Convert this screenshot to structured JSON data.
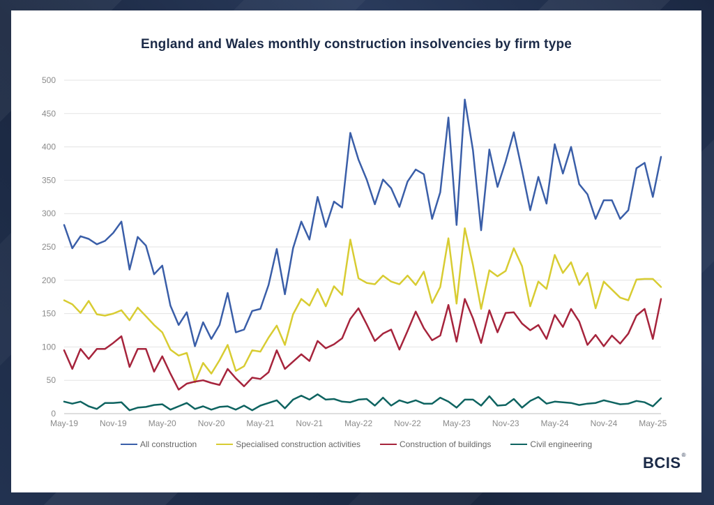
{
  "logo": {
    "text": "BCIS",
    "mark": "®"
  },
  "chart_data": {
    "type": "line",
    "title": "England and Wales monthly construction insolvencies by firm type",
    "xlabel": "",
    "ylabel": "",
    "ylim": [
      0,
      500
    ],
    "yticks": [
      "0",
      "50",
      "100",
      "150",
      "200",
      "250",
      "300",
      "350",
      "400",
      "450",
      "500"
    ],
    "x_tick_labels": [
      {
        "index": 0,
        "label": "May-19"
      },
      {
        "index": 6,
        "label": "Nov-19"
      },
      {
        "index": 12,
        "label": "May-20"
      },
      {
        "index": 18,
        "label": "Nov-20"
      },
      {
        "index": 24,
        "label": "May-21"
      },
      {
        "index": 30,
        "label": "Nov-21"
      },
      {
        "index": 36,
        "label": "May-22"
      },
      {
        "index": 42,
        "label": "Nov-22"
      },
      {
        "index": 48,
        "label": "May-23"
      },
      {
        "index": 54,
        "label": "Nov-23"
      },
      {
        "index": 60,
        "label": "May-24"
      },
      {
        "index": 66,
        "label": "Nov-24"
      },
      {
        "index": 72,
        "label": "May-25"
      }
    ],
    "grid": true,
    "legend_position": "bottom",
    "series": [
      {
        "name": "All construction",
        "color": "#3a5ea8",
        "values": [
          283,
          248,
          266,
          262,
          254,
          259,
          271,
          288,
          216,
          265,
          252,
          209,
          222,
          162,
          133,
          152,
          101,
          137,
          112,
          133,
          181,
          122,
          126,
          154,
          157,
          193,
          247,
          179,
          248,
          288,
          261,
          325,
          280,
          318,
          309,
          421,
          381,
          351,
          314,
          351,
          338,
          310,
          348,
          366,
          359,
          292,
          332,
          444,
          283,
          471,
          395,
          275,
          396,
          340,
          378,
          422,
          365,
          305,
          355,
          315,
          404,
          360,
          400,
          344,
          329,
          292,
          320,
          320,
          292,
          305,
          368,
          376,
          325,
          385
        ]
      },
      {
        "name": "Specialised construction activities",
        "color": "#d8cc32",
        "values": [
          170,
          164,
          151,
          169,
          149,
          147,
          150,
          155,
          140,
          159,
          146,
          133,
          122,
          96,
          87,
          91,
          47,
          76,
          60,
          80,
          103,
          64,
          71,
          95,
          93,
          114,
          132,
          103,
          149,
          172,
          162,
          187,
          161,
          191,
          178,
          261,
          203,
          196,
          194,
          207,
          198,
          194,
          207,
          193,
          213,
          166,
          190,
          263,
          165,
          278,
          223,
          157,
          215,
          206,
          214,
          248,
          221,
          161,
          198,
          187,
          238,
          211,
          227,
          193,
          211,
          158,
          198,
          186,
          174,
          170,
          201,
          202,
          202,
          190
        ]
      },
      {
        "name": "Construction of buildings",
        "color": "#a6243c",
        "values": [
          95,
          67,
          97,
          82,
          97,
          97,
          106,
          116,
          70,
          97,
          97,
          63,
          86,
          60,
          36,
          45,
          48,
          50,
          46,
          43,
          67,
          53,
          41,
          54,
          52,
          62,
          95,
          67,
          78,
          89,
          79,
          109,
          98,
          104,
          113,
          142,
          158,
          134,
          109,
          120,
          126,
          96,
          124,
          153,
          128,
          110,
          117,
          163,
          108,
          172,
          143,
          106,
          155,
          122,
          151,
          152,
          135,
          125,
          133,
          112,
          148,
          130,
          157,
          138,
          103,
          118,
          101,
          117,
          105,
          120,
          147,
          157,
          112,
          172
        ]
      },
      {
        "name": "Civil engineering",
        "color": "#0e6360",
        "values": [
          18,
          15,
          18,
          11,
          7,
          16,
          16,
          17,
          5,
          9,
          10,
          13,
          14,
          6,
          11,
          16,
          7,
          11,
          6,
          10,
          11,
          6,
          12,
          5,
          12,
          16,
          20,
          8,
          21,
          27,
          21,
          29,
          21,
          22,
          18,
          17,
          21,
          22,
          12,
          24,
          12,
          20,
          16,
          20,
          15,
          15,
          24,
          18,
          9,
          21,
          21,
          12,
          26,
          12,
          13,
          22,
          9,
          19,
          25,
          15,
          18,
          17,
          16,
          13,
          15,
          16,
          20,
          17,
          14,
          15,
          19,
          17,
          11,
          23
        ]
      }
    ]
  }
}
